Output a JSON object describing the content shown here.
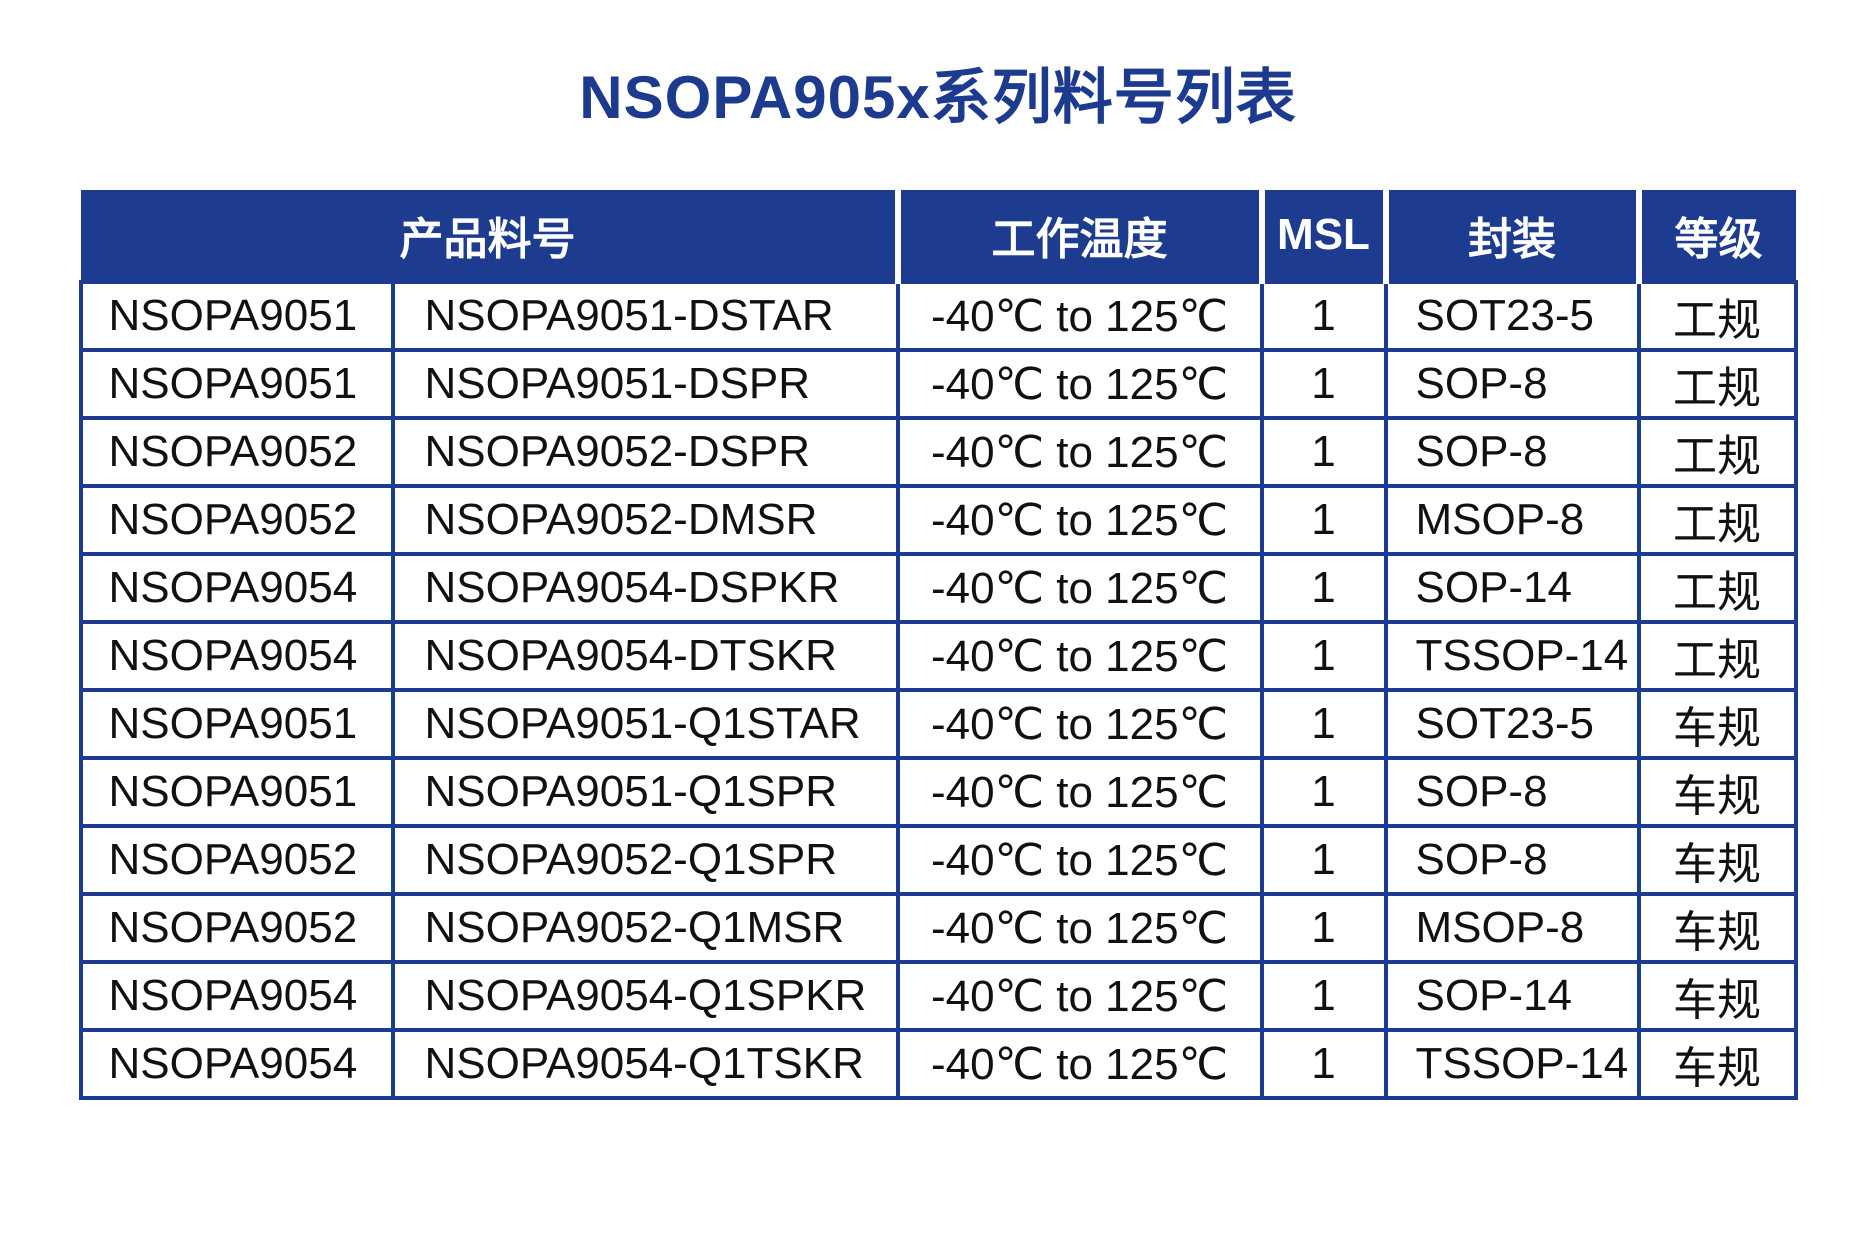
{
  "title": "NSOPA905x系列料号列表",
  "colors": {
    "accent_blue": "#1c3a8e",
    "header_background": "#1d3c90",
    "header_text": "#ffffff",
    "body_text": "#111111"
  },
  "table": {
    "headers": [
      "产品料号",
      "工作温度",
      "MSL",
      "封装",
      "等级"
    ],
    "rows": [
      [
        "NSOPA9051",
        "NSOPA9051-DSTAR",
        "-40℃ to 125℃",
        "1",
        "SOT23-5",
        "工规"
      ],
      [
        "NSOPA9051",
        "NSOPA9051-DSPR",
        "-40℃ to 125℃",
        "1",
        "SOP-8",
        "工规"
      ],
      [
        "NSOPA9052",
        "NSOPA9052-DSPR",
        "-40℃ to 125℃",
        "1",
        "SOP-8",
        "工规"
      ],
      [
        "NSOPA9052",
        "NSOPA9052-DMSR",
        "-40℃ to 125℃",
        "1",
        "MSOP-8",
        "工规"
      ],
      [
        "NSOPA9054",
        "NSOPA9054-DSPKR",
        "-40℃ to 125℃",
        "1",
        "SOP-14",
        "工规"
      ],
      [
        "NSOPA9054",
        "NSOPA9054-DTSKR",
        "-40℃ to 125℃",
        "1",
        "TSSOP-14",
        "工规"
      ],
      [
        "NSOPA9051",
        "NSOPA9051-Q1STAR",
        "-40℃ to 125℃",
        "1",
        "SOT23-5",
        "车规"
      ],
      [
        "NSOPA9051",
        "NSOPA9051-Q1SPR",
        "-40℃ to 125℃",
        "1",
        "SOP-8",
        "车规"
      ],
      [
        "NSOPA9052",
        "NSOPA9052-Q1SPR",
        "-40℃ to 125℃",
        "1",
        "SOP-8",
        "车规"
      ],
      [
        "NSOPA9052",
        "NSOPA9052-Q1MSR",
        "-40℃ to 125℃",
        "1",
        "MSOP-8",
        "车规"
      ],
      [
        "NSOPA9054",
        "NSOPA9054-Q1SPKR",
        "-40℃ to 125℃",
        "1",
        "SOP-14",
        "车规"
      ],
      [
        "NSOPA9054",
        "NSOPA9054-Q1TSKR",
        "-40℃ to 125℃",
        "1",
        "TSSOP-14",
        "车规"
      ]
    ]
  }
}
